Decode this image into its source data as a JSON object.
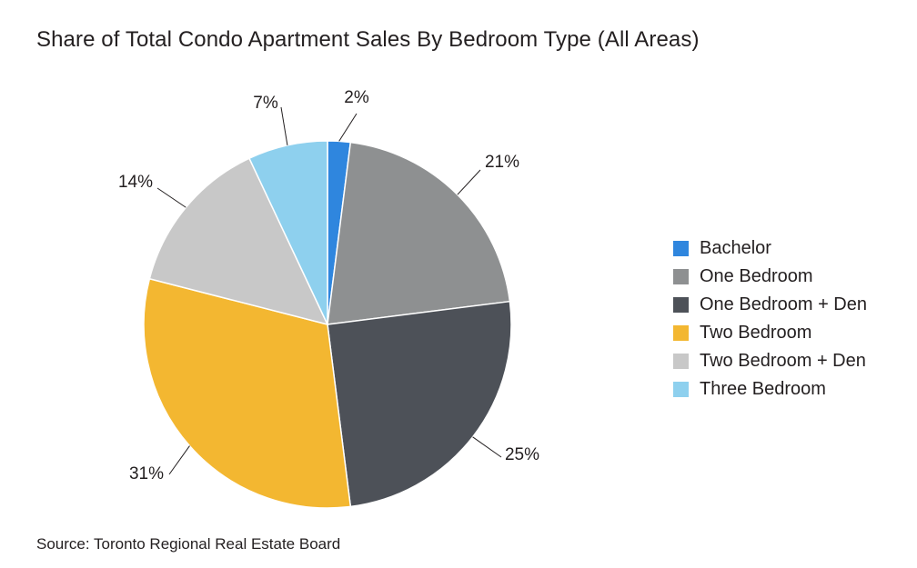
{
  "chart_data": {
    "type": "pie",
    "title": "Share of Total Condo Apartment Sales By Bedroom Type (All Areas)",
    "source": "Source: Toronto Regional Real Estate Board",
    "unit": "%",
    "legend_position": "right",
    "slices": [
      {
        "label": "Bachelor",
        "value": 2,
        "data_label": "2%",
        "color": "#2f86de"
      },
      {
        "label": "One Bedroom",
        "value": 21,
        "data_label": "21%",
        "color": "#8e9091"
      },
      {
        "label": "One Bedroom + Den",
        "value": 25,
        "data_label": "25%",
        "color": "#4d5158"
      },
      {
        "label": "Two Bedroom",
        "value": 31,
        "data_label": "31%",
        "color": "#f3b731"
      },
      {
        "label": "Two Bedroom + Den",
        "value": 14,
        "data_label": "14%",
        "color": "#c8c8c8"
      },
      {
        "label": "Three Bedroom",
        "value": 7,
        "data_label": "7%",
        "color": "#8ed0ee"
      }
    ]
  }
}
